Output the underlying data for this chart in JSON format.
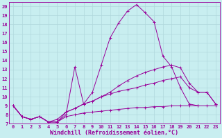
{
  "xlabel": "Windchill (Refroidissement éolien,°C)",
  "bg_color": "#c8eef0",
  "grid_color": "#b0d8dc",
  "line_color": "#990099",
  "xlim": [
    -0.5,
    23.5
  ],
  "ylim": [
    7,
    20.5
  ],
  "xticks": [
    0,
    1,
    2,
    3,
    4,
    5,
    6,
    7,
    8,
    9,
    10,
    11,
    12,
    13,
    14,
    15,
    16,
    17,
    18,
    19,
    20,
    21,
    22,
    23
  ],
  "yticks": [
    7,
    8,
    9,
    10,
    11,
    12,
    13,
    14,
    15,
    16,
    17,
    18,
    19,
    20
  ],
  "series": [
    {
      "x": [
        0,
        1,
        2,
        3,
        4,
        5,
        6,
        7,
        8,
        9,
        10,
        11,
        12,
        13,
        14,
        15,
        16,
        17,
        18,
        19,
        20,
        21,
        22,
        23
      ],
      "y": [
        9.0,
        7.8,
        7.5,
        7.8,
        7.2,
        7.2,
        8.0,
        13.3,
        9.2,
        10.5,
        13.5,
        16.5,
        18.2,
        19.5,
        20.2,
        19.3,
        18.3,
        14.5,
        13.3,
        11.0,
        9.2,
        9.0,
        null,
        null
      ]
    },
    {
      "x": [
        0,
        1,
        2,
        3,
        4,
        5,
        6,
        7,
        8,
        9,
        10,
        11,
        12,
        13,
        14,
        15,
        16,
        17,
        18,
        19,
        20,
        21,
        22,
        23
      ],
      "y": [
        9.0,
        7.8,
        7.5,
        7.8,
        7.2,
        7.5,
        8.3,
        8.7,
        9.2,
        9.5,
        10.0,
        10.3,
        10.6,
        10.8,
        11.0,
        11.3,
        11.5,
        11.8,
        12.0,
        12.2,
        11.0,
        10.5,
        10.5,
        9.2
      ]
    },
    {
      "x": [
        0,
        1,
        2,
        3,
        4,
        5,
        6,
        7,
        8,
        9,
        10,
        11,
        12,
        13,
        14,
        15,
        16,
        17,
        18,
        19,
        20,
        21,
        22,
        23
      ],
      "y": [
        9.0,
        7.8,
        7.5,
        7.8,
        7.2,
        7.2,
        7.8,
        8.0,
        8.2,
        8.3,
        8.4,
        8.5,
        8.6,
        8.7,
        8.8,
        8.8,
        8.9,
        8.9,
        9.0,
        9.0,
        9.0,
        9.0,
        9.0,
        9.0
      ]
    },
    {
      "x": [
        0,
        1,
        2,
        3,
        4,
        5,
        6,
        7,
        8,
        9,
        10,
        11,
        12,
        13,
        14,
        15,
        16,
        17,
        18,
        19,
        20,
        21,
        22,
        23
      ],
      "y": [
        9.0,
        7.8,
        7.5,
        7.8,
        7.2,
        7.2,
        8.3,
        8.7,
        9.2,
        9.5,
        10.0,
        10.5,
        11.2,
        11.8,
        12.3,
        12.7,
        13.0,
        13.3,
        13.5,
        13.2,
        11.5,
        10.5,
        10.5,
        9.2
      ]
    }
  ],
  "tick_fontsize": 5.0,
  "label_fontsize": 6.0
}
